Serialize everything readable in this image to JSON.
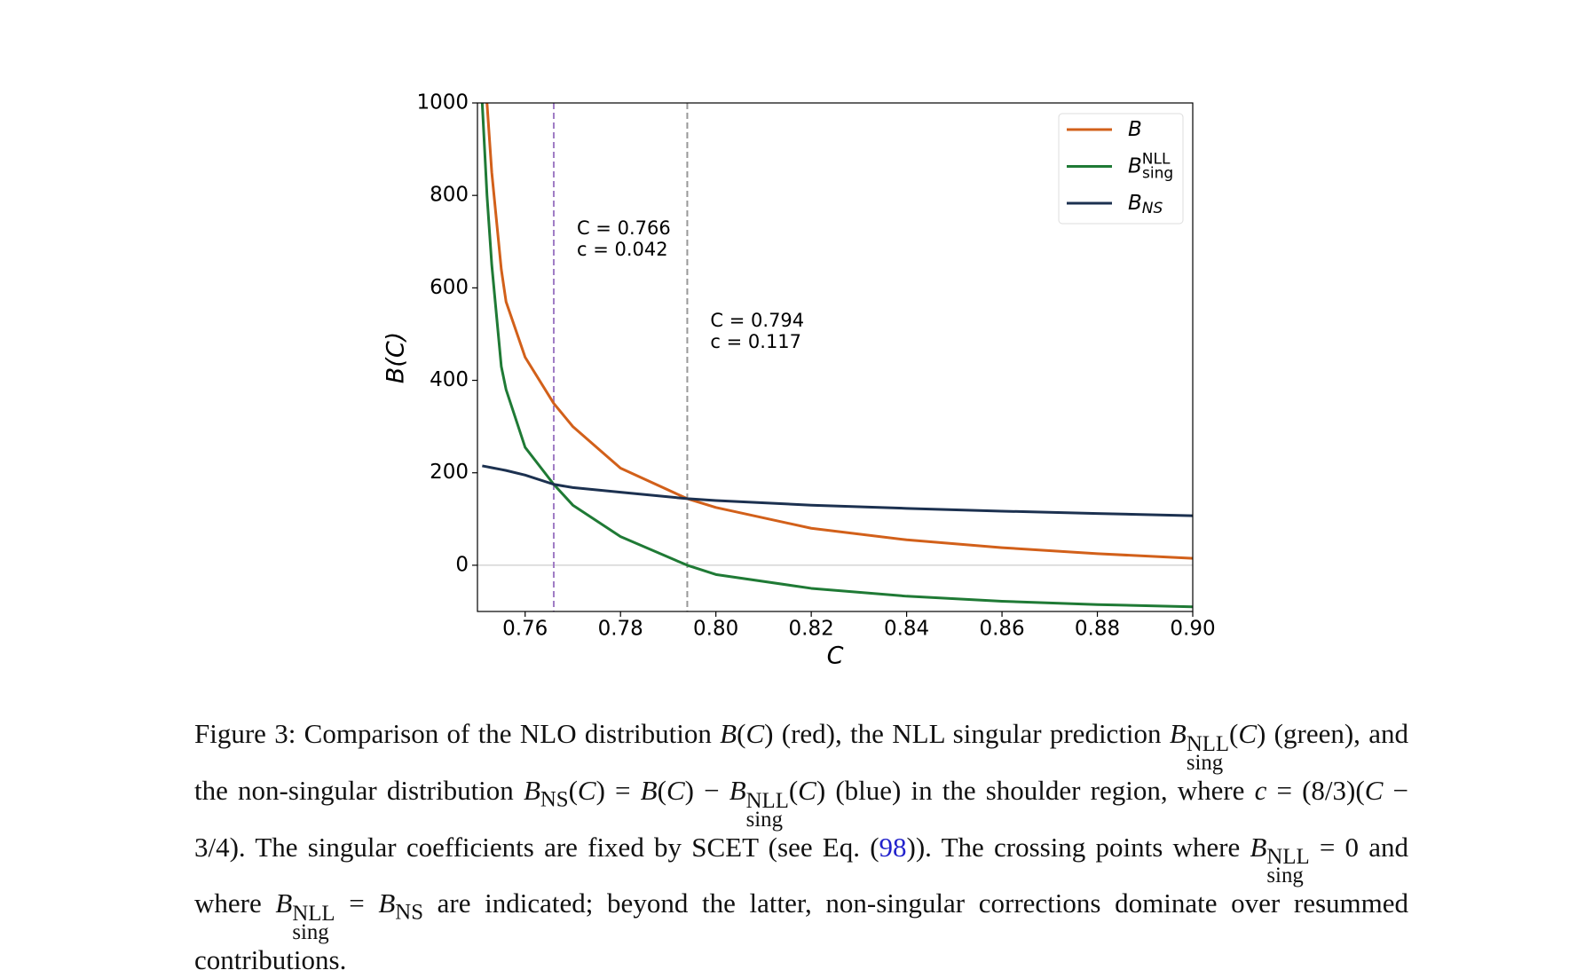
{
  "chart_data": {
    "type": "line",
    "xlabel": "C",
    "ylabel": "B(C)",
    "x": [
      0.751,
      0.752,
      0.753,
      0.755,
      0.756,
      0.76,
      0.766,
      0.77,
      0.78,
      0.794,
      0.8,
      0.82,
      0.84,
      0.86,
      0.88,
      0.9
    ],
    "series": [
      {
        "name": "B",
        "color": "#d2601a",
        "values": [
          null,
          1000,
          850,
          640,
          570,
          450,
          350,
          300,
          210,
          144,
          125,
          80,
          55,
          38,
          25,
          15
        ]
      },
      {
        "name": "B",
        "sup": "NLL",
        "sub": "sing",
        "color": "#1f7a35",
        "values": [
          1000,
          800,
          650,
          430,
          380,
          255,
          175,
          130,
          62,
          0,
          -20,
          -50,
          -67,
          -78,
          -85,
          -90
        ]
      },
      {
        "name": "B",
        "sub": "NS",
        "color": "#1c3150",
        "values": [
          215,
          213,
          211,
          207,
          205,
          195,
          175,
          168,
          158,
          144,
          140,
          130,
          123,
          117,
          112,
          107
        ]
      }
    ],
    "xlim": [
      0.75,
      0.9
    ],
    "ylim": [
      -100,
      1000
    ],
    "xticks": [
      0.76,
      0.78,
      {
        "value": 0.8,
        "label": "0.80"
      },
      0.82,
      0.84,
      0.86,
      0.88,
      {
        "value": 0.9,
        "label": "0.90"
      }
    ],
    "yticks": [
      0,
      200,
      400,
      600,
      800,
      1000
    ],
    "hlines": [
      {
        "y": 0,
        "color": "#cccccc"
      }
    ],
    "vlines": [
      {
        "x": 0.766,
        "color": "#a07cc5",
        "text_color": "#8e44ad",
        "lines": [
          "C = 0.766",
          "c = 0.042"
        ]
      },
      {
        "x": 0.794,
        "color": "#999999",
        "text_color": "#777777",
        "lines": [
          "C = 0.794",
          "c = 0.117"
        ]
      }
    ],
    "legend": "upper right"
  },
  "caption": {
    "runs": [
      {
        "t": "Figure 3: Comparison of the NLO distribution "
      },
      {
        "t": "B",
        "s": "i"
      },
      {
        "t": "("
      },
      {
        "t": "C",
        "s": "i"
      },
      {
        "t": ") (red), the NLL singular prediction "
      },
      {
        "t": "B",
        "s": "i"
      },
      {
        "sup": "NLL",
        "sub": "sing"
      },
      {
        "t": "("
      },
      {
        "t": "C",
        "s": "i"
      },
      {
        "t": ") (green), and the non-singular distribution "
      },
      {
        "t": "B",
        "s": "i"
      },
      {
        "t": "NS",
        "s": "sub"
      },
      {
        "t": "("
      },
      {
        "t": "C",
        "s": "i"
      },
      {
        "t": ") = "
      },
      {
        "t": "B",
        "s": "i"
      },
      {
        "t": "("
      },
      {
        "t": "C",
        "s": "i"
      },
      {
        "t": ") − "
      },
      {
        "t": "B",
        "s": "i"
      },
      {
        "sup": "NLL",
        "sub": "sing"
      },
      {
        "t": "("
      },
      {
        "t": "C",
        "s": "i"
      },
      {
        "t": ") (blue) in the shoulder region, where "
      },
      {
        "t": "c",
        "s": "i"
      },
      {
        "t": " = (8/3)("
      },
      {
        "t": "C",
        "s": "i"
      },
      {
        "t": " − 3/4). The singular coefficients are fixed by SCET (see Eq. ("
      },
      {
        "t": "98",
        "s": "link"
      },
      {
        "t": ")). The crossing points where "
      },
      {
        "t": "B",
        "s": "i"
      },
      {
        "sup": "NLL",
        "sub": "sing"
      },
      {
        "t": " = 0 and where "
      },
      {
        "t": "B",
        "s": "i"
      },
      {
        "sup": "NLL",
        "sub": "sing"
      },
      {
        "t": " = "
      },
      {
        "t": "B",
        "s": "i"
      },
      {
        "t": "NS",
        "s": "sub"
      },
      {
        "t": " are indicated; beyond the latter, non-singular corrections dominate over resummed contributions."
      }
    ]
  }
}
